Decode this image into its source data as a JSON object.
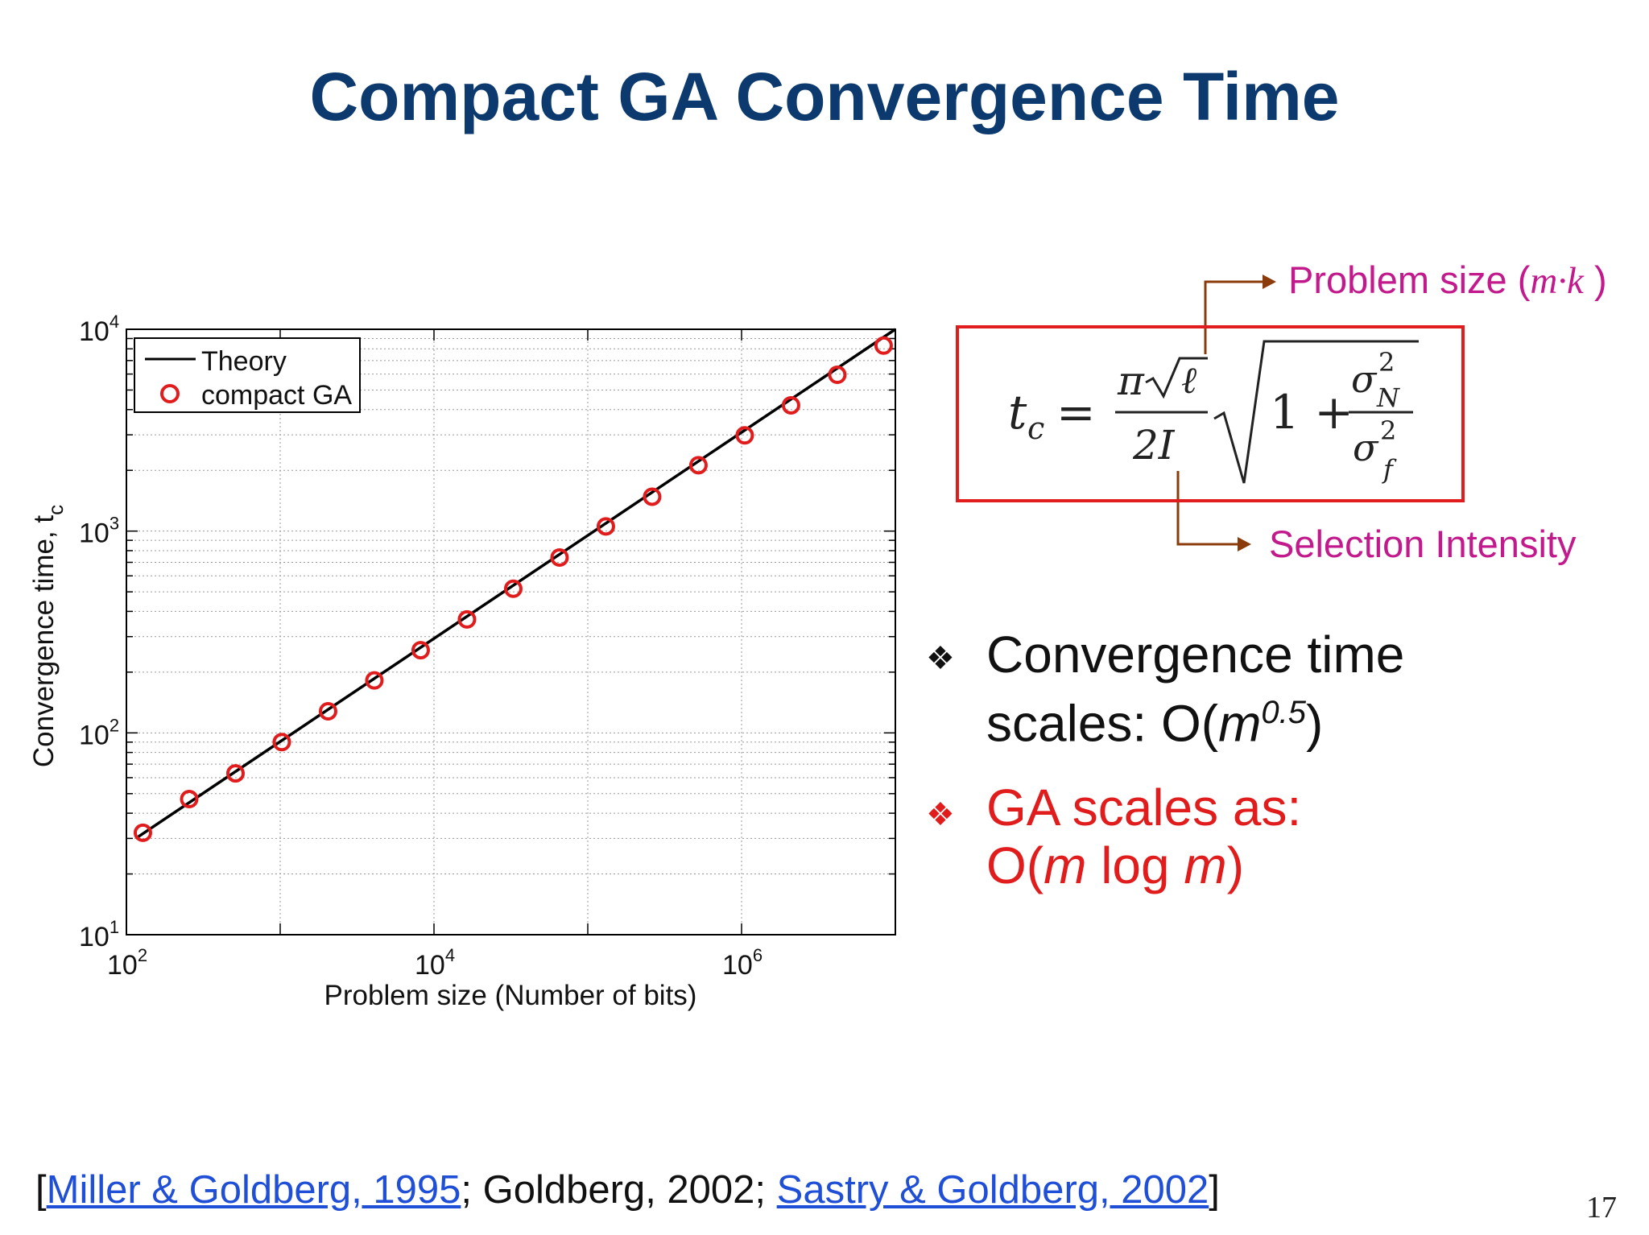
{
  "slide": {
    "title": "Compact GA Convergence Time",
    "page_number": "17"
  },
  "chart_data": {
    "type": "scatter",
    "xlabel": "Problem size (Number of bits)",
    "ylabel": "Convergence time, t",
    "ylabel_subscript": "c",
    "xscale": "log",
    "yscale": "log",
    "xlim": [
      100,
      10000000
    ],
    "ylim": [
      10,
      10000
    ],
    "x_ticks": [
      {
        "base": "10",
        "exp": "2"
      },
      {
        "base": "10",
        "exp": "4"
      },
      {
        "base": "10",
        "exp": "6"
      }
    ],
    "y_ticks": [
      {
        "base": "10",
        "exp": "1"
      },
      {
        "base": "10",
        "exp": "2"
      },
      {
        "base": "10",
        "exp": "3"
      },
      {
        "base": "10",
        "exp": "4"
      }
    ],
    "grid": true,
    "legend": {
      "position": "top-left",
      "entries": [
        "Theory",
        "compact GA"
      ]
    },
    "series": [
      {
        "name": "Theory",
        "style": "line",
        "color": "#000000",
        "x": [
          115,
          10000000
        ],
        "y": [
          30,
          10000
        ]
      },
      {
        "name": "compact GA",
        "style": "circle-markers",
        "color": "#e01c1c",
        "x": [
          128,
          256,
          512,
          1024,
          2048,
          4096,
          8192,
          16384,
          32768,
          65536,
          131072,
          262144,
          524288,
          1048576,
          2097152,
          4194304,
          8388608
        ],
        "y": [
          32,
          47,
          63,
          90,
          128,
          182,
          257,
          365,
          518,
          740,
          1055,
          1480,
          2120,
          2980,
          4200,
          5950,
          8300
        ]
      }
    ]
  },
  "formula": {
    "lhs": "t",
    "lhs_sub": "c",
    "eq": "=",
    "pi": "π",
    "ell": "ℓ",
    "denom": "2I",
    "one_plus": "1 +",
    "sigma": "σ",
    "sq": "2",
    "sub_n": "N",
    "sub_f": "f"
  },
  "annotations": {
    "problem_size": {
      "text": "Problem size (",
      "var": "m·k",
      "close": " )"
    },
    "selection": "Selection Intensity",
    "arrow_color": "#8b3a0a"
  },
  "bullets": {
    "symbol": "❖",
    "b1": {
      "line1": "Convergence time",
      "line2a": "scales: O(",
      "m": "m",
      "exp": "0.5",
      "close": ")"
    },
    "b2": {
      "line1": "GA scales as:",
      "l2a": "O(",
      "m1": "m",
      "log": " log ",
      "m2": "m",
      "close": ")"
    }
  },
  "footer": {
    "open": "[",
    "ref1": "Miller & Goldberg, 1995",
    "sep1": "; Goldberg, 2002; ",
    "ref2": "Sastry & Goldberg, 2002",
    "close": "]"
  }
}
